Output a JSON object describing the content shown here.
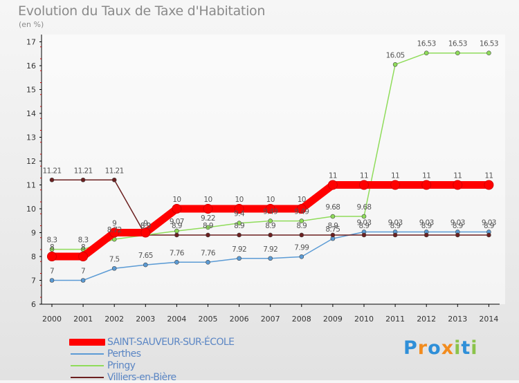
{
  "header": {
    "title": "Evolution du Taux de Taxe d'Habitation",
    "subtitle": "(en %)"
  },
  "logo": {
    "text": "Proxiti"
  },
  "chart_data": {
    "type": "line",
    "title": "Evolution du Taux de Taxe d'Habitation",
    "ylabel": "(en %)",
    "xlabel": "",
    "ylim": [
      6,
      17
    ],
    "yticks": [
      "6",
      "7",
      "8",
      "9",
      "10",
      "11",
      "12",
      "13",
      "14",
      "15",
      "16",
      "17"
    ],
    "categories": [
      "2000",
      "2001",
      "2002",
      "2003",
      "2004",
      "2005",
      "2006",
      "2007",
      "2008",
      "2009",
      "2010",
      "2011",
      "2012",
      "2013",
      "2014"
    ],
    "grid": false,
    "legend_position": "bottom-left",
    "series": [
      {
        "name": "SAINT-SAUVEUR-SUR-ÉCOLE",
        "color": "#ff0000",
        "values": [
          8,
          8,
          9,
          9,
          10,
          10,
          10,
          10,
          10,
          11,
          11,
          11,
          11,
          11,
          11
        ],
        "labels": [
          "8",
          "8",
          "9",
          "9",
          "10",
          "10",
          "10",
          "10",
          "10",
          "11",
          "11",
          "11",
          "11",
          "11",
          "11"
        ]
      },
      {
        "name": "Perthes",
        "color": "#5b9bd5",
        "values": [
          7,
          7,
          7.5,
          7.65,
          7.76,
          7.76,
          7.92,
          7.92,
          7.99,
          8.75,
          9.03,
          9.03,
          9.03,
          9.03,
          9.03
        ],
        "labels": [
          "7",
          "7",
          "7.5",
          "7.65",
          "7.76",
          "7.76",
          "7.92",
          "7.92",
          "7.99",
          "8.75",
          "9.03",
          "9.03",
          "9.03",
          "9.03",
          "9.03"
        ]
      },
      {
        "name": "Pringy",
        "color": "#8fdc5a",
        "values": [
          8.3,
          8.3,
          8.72,
          8.9,
          9.07,
          9.22,
          9.4,
          9.49,
          9.49,
          9.68,
          9.68,
          16.05,
          16.53,
          16.53,
          16.53
        ],
        "labels": [
          "8.3",
          "8.3",
          "8.72",
          "8.9",
          "9.07",
          "9.22",
          "9.4",
          "9.49",
          "9.49",
          "9.68",
          "9.68",
          "16.05",
          "16.53",
          "16.53",
          "16.53"
        ]
      },
      {
        "name": "Villiers-en-Bière",
        "color": "#6b1f1f",
        "values": [
          11.21,
          11.21,
          11.21,
          8.9,
          8.9,
          8.9,
          8.9,
          8.9,
          8.9,
          8.9,
          8.9,
          8.9,
          8.9,
          8.9,
          8.9
        ],
        "labels": [
          "11.21",
          "11.21",
          "11.21",
          "8.9",
          "8.9",
          "8.9",
          "8.9",
          "8.9",
          "8.9",
          "8.9",
          "8.9",
          "8.9",
          "8.9",
          "8.9",
          "8.9"
        ]
      }
    ]
  }
}
